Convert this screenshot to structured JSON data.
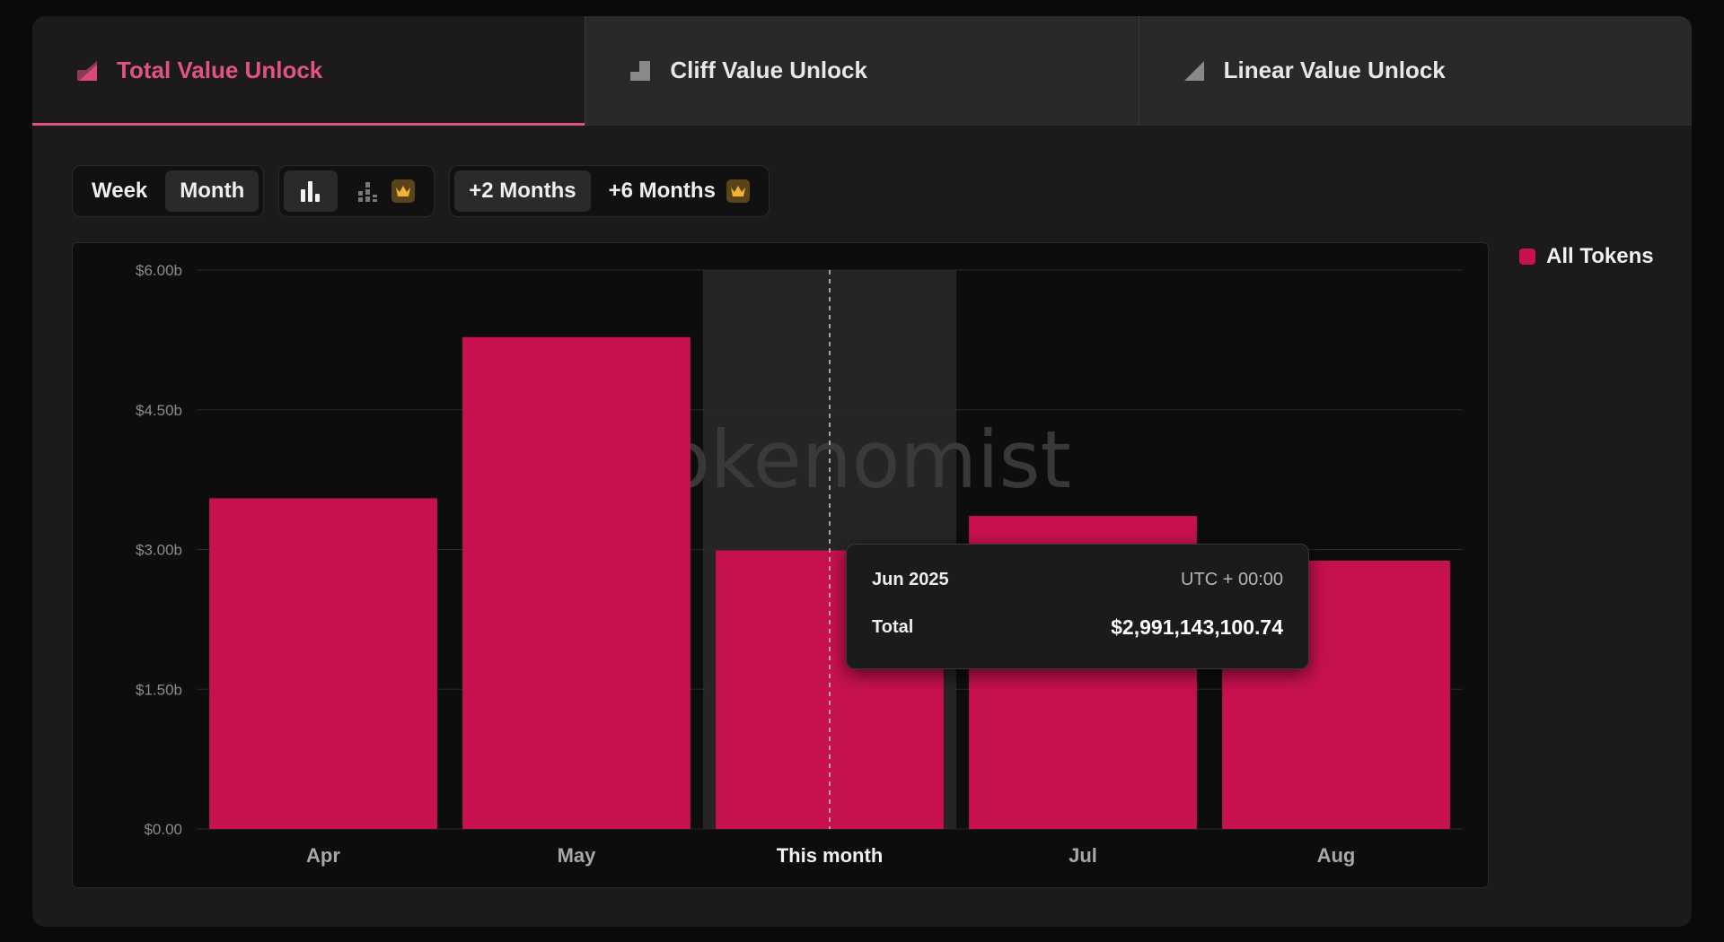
{
  "tabs": [
    {
      "label": "Total Value Unlock",
      "active": true
    },
    {
      "label": "Cliff Value Unlock",
      "active": false
    },
    {
      "label": "Linear Value Unlock",
      "active": false
    }
  ],
  "toolbar": {
    "period": [
      "Week",
      "Month"
    ],
    "selected_period": "Month",
    "range": [
      "+2 Months",
      "+6 Months"
    ]
  },
  "legend": {
    "label": "All Tokens",
    "color": "#c8114f"
  },
  "watermark": "okenomist",
  "tooltip": {
    "date": "Jun 2025",
    "timezone": "UTC + 00:00",
    "label": "Total",
    "value": "$2,991,143,100.74"
  },
  "chart_data": {
    "type": "bar",
    "categories": [
      "Apr",
      "May",
      "This month",
      "Jul",
      "Aug"
    ],
    "highlight_index": 2,
    "series": [
      {
        "name": "All Tokens",
        "values": [
          3.55,
          5.28,
          2.99,
          3.36,
          2.88
        ],
        "color": "#c8114f"
      }
    ],
    "y_ticks": [
      "$0.00",
      "$1.50b",
      "$3.00b",
      "$4.50b",
      "$6.00b"
    ],
    "y_tick_values": [
      0,
      1.5,
      3,
      4.5,
      6
    ],
    "ylim": [
      0,
      6
    ],
    "grid": true
  }
}
